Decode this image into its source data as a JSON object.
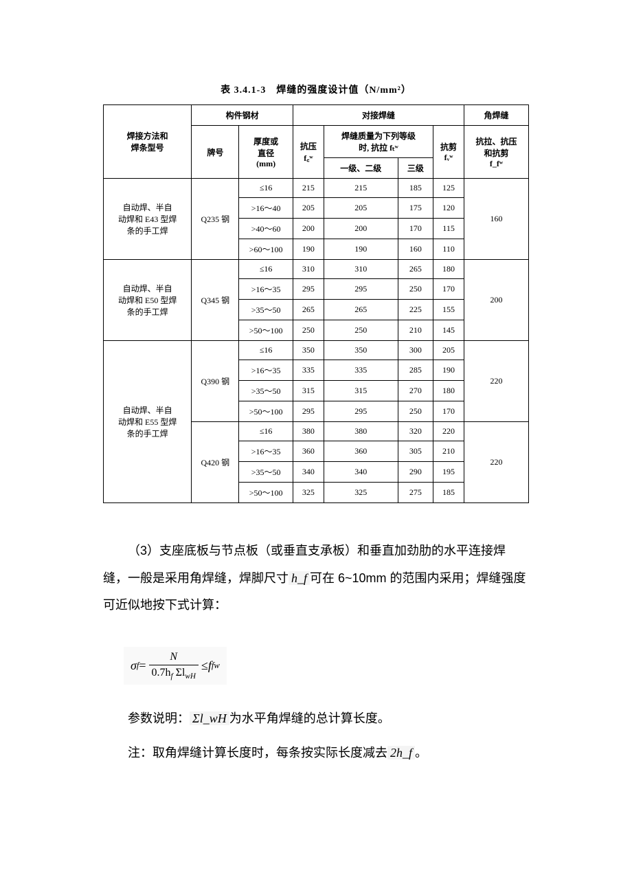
{
  "table": {
    "title": "表 3.4.1-3　焊缝的强度设计值（N/mm²）",
    "header": {
      "col_methods": "焊接方法和\n焊条型号",
      "col_material": "构件钢材",
      "col_butt": "对接焊缝",
      "col_fillet": "角焊缝",
      "col_grade": "牌号",
      "col_thickness": "厚度或\n直径\n(mm)",
      "col_compress": "抗压\nf꜀ʷ",
      "col_quality": "焊缝质量为下列等级\n时, 抗拉 fₜʷ",
      "col_shear": "抗剪\nfᵥʷ",
      "col_fillet_val": "抗拉、抗压\n和抗剪\nf_fʷ",
      "col_g12": "一级、二级",
      "col_g3": "三级"
    },
    "groups": [
      {
        "method": "自动焊、半自\n动焊和 E43 型焊\n条的手工焊",
        "steel": "Q235 钢",
        "fillet": "160",
        "rows": [
          {
            "t": "≤16",
            "c": "215",
            "g12": "215",
            "g3": "185",
            "s": "125"
          },
          {
            "t": ">16～40",
            "c": "205",
            "g12": "205",
            "g3": "175",
            "s": "120"
          },
          {
            "t": ">40～60",
            "c": "200",
            "g12": "200",
            "g3": "170",
            "s": "115"
          },
          {
            "t": ">60～100",
            "c": "190",
            "g12": "190",
            "g3": "160",
            "s": "110"
          }
        ]
      },
      {
        "method": "自动焊、半自\n动焊和 E50 型焊\n条的手工焊",
        "steel": "Q345 钢",
        "fillet": "200",
        "rows": [
          {
            "t": "≤16",
            "c": "310",
            "g12": "310",
            "g3": "265",
            "s": "180"
          },
          {
            "t": ">16～35",
            "c": "295",
            "g12": "295",
            "g3": "250",
            "s": "170"
          },
          {
            "t": ">35～50",
            "c": "265",
            "g12": "265",
            "g3": "225",
            "s": "155"
          },
          {
            "t": ">50～100",
            "c": "250",
            "g12": "250",
            "g3": "210",
            "s": "145"
          }
        ]
      },
      {
        "method": "自动焊、半自\n动焊和 E55 型焊\n条的手工焊",
        "steels": [
          {
            "steel": "Q390 钢",
            "fillet": "220",
            "rows": [
              {
                "t": "≤16",
                "c": "350",
                "g12": "350",
                "g3": "300",
                "s": "205"
              },
              {
                "t": ">16～35",
                "c": "335",
                "g12": "335",
                "g3": "285",
                "s": "190"
              },
              {
                "t": ">35～50",
                "c": "315",
                "g12": "315",
                "g3": "270",
                "s": "180"
              },
              {
                "t": ">50～100",
                "c": "295",
                "g12": "295",
                "g3": "250",
                "s": "170"
              }
            ]
          },
          {
            "steel": "Q420 钢",
            "fillet": "220",
            "rows": [
              {
                "t": "≤16",
                "c": "380",
                "g12": "380",
                "g3": "320",
                "s": "220"
              },
              {
                "t": ">16～35",
                "c": "360",
                "g12": "360",
                "g3": "305",
                "s": "210"
              },
              {
                "t": ">35～50",
                "c": "340",
                "g12": "340",
                "g3": "290",
                "s": "195"
              },
              {
                "t": ">50～100",
                "c": "325",
                "g12": "325",
                "g3": "275",
                "s": "185"
              }
            ]
          }
        ]
      }
    ]
  },
  "paragraphs": {
    "p1_a": "（3）支座底板与节点板（或垂直支承板）和垂直加劲肋的水平连接焊缝，一般是采用角焊缝，焊脚尺寸",
    "p1_var": "h_f",
    "p1_b": "可在 6~10mm 的范围内采用；焊缝强度可近似地按下式计算：",
    "p2_a": "参数说明：",
    "p2_var": "Σl_wH",
    "p2_b": "为水平角焊缝的总计算长度。",
    "p3_a": "注：取角焊缝计算长度时，每条按实际长度减去",
    "p3_var": "2h_f",
    "p3_b": "。"
  },
  "formula": {
    "sigma": "σ",
    "sub_f": "f",
    "eq": " = ",
    "num": "N",
    "den_a": "0.7h",
    "den_sub1": "f",
    "den_sum": " Σl",
    "den_sub2": "wH",
    "le": " ≤ ",
    "rhs": "f",
    "rhs_sub": "f",
    "rhs_sup": "w"
  },
  "style": {
    "border_color": "#000000",
    "bg_color": "#ffffff",
    "title_fontsize": 14,
    "table_fontsize": 12,
    "body_fontsize": 18
  }
}
